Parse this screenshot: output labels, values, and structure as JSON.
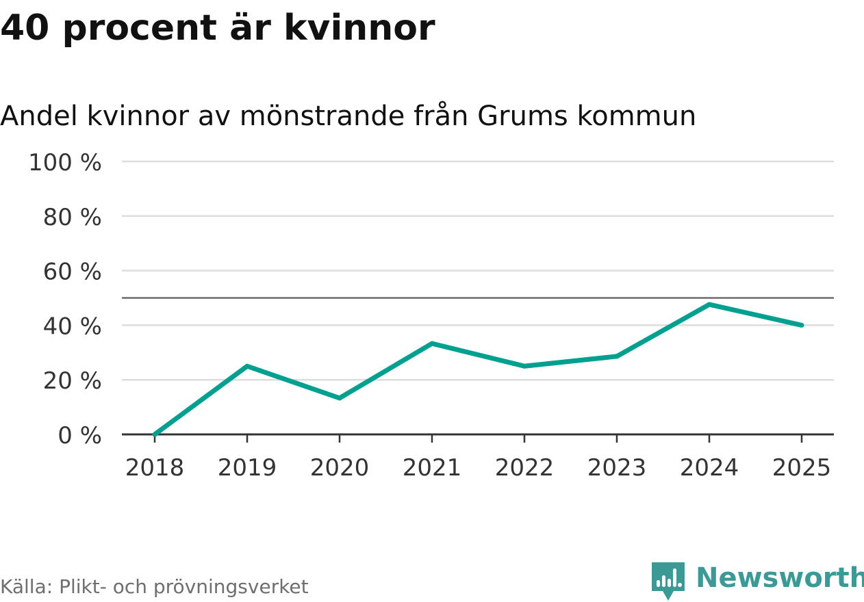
{
  "title": "40 procent är kvinnor",
  "subtitle": "Andel kvinnor av mönstrande från Grums kommun",
  "source": "Källa: Plikt- och prövningsverket",
  "brand": {
    "name": "Newsworthy",
    "icon": "newsworthy-logo-icon",
    "color": "#3c9a96"
  },
  "colors": {
    "line": "#00a091",
    "grid": "#dddddd",
    "reference": "#6b6b6b",
    "axis": "#333333",
    "tick_text": "#333333"
  },
  "chart_data": {
    "type": "line",
    "title": "Andel kvinnor av mönstrande från Grums kommun",
    "xlabel": "",
    "ylabel": "",
    "categories": [
      "2018",
      "2019",
      "2020",
      "2021",
      "2022",
      "2023",
      "2024",
      "2025"
    ],
    "series": [
      {
        "name": "Andel kvinnor",
        "values": [
          0,
          25,
          13.3,
          33.3,
          25,
          28.6,
          47.6,
          40
        ]
      }
    ],
    "ylim": [
      0,
      100
    ],
    "y_ticks": [
      0,
      20,
      40,
      60,
      80,
      100
    ],
    "y_tick_labels": [
      "0 %",
      "20 %",
      "40 %",
      "60 %",
      "80 %",
      "100 %"
    ],
    "reference_line": 50,
    "grid": true,
    "legend": "none"
  }
}
